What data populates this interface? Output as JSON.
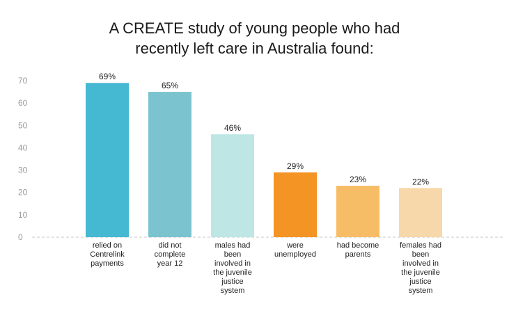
{
  "title_lines": [
    "A CREATE study of young people who had",
    "recently left care in Australia found:"
  ],
  "chart_data": {
    "type": "bar",
    "title": "A CREATE study of young people who had recently left care in Australia found:",
    "categories": [
      [
        "relied on",
        "Centrelink",
        "payments"
      ],
      [
        "did not",
        "complete",
        "year 12"
      ],
      [
        "males had",
        "been",
        "involved in",
        "the juvenile",
        "justice",
        "system"
      ],
      [
        "were",
        "unemployed"
      ],
      [
        "had become",
        "parents"
      ],
      [
        "females had",
        "been",
        "involved in",
        "the juvenile",
        "justice",
        "system"
      ]
    ],
    "values": [
      69,
      65,
      46,
      29,
      23,
      22
    ],
    "data_labels": [
      "69%",
      "65%",
      "46%",
      "29%",
      "23%",
      "22%"
    ],
    "colors": [
      "#45b8d2",
      "#7cc3d0",
      "#bde6e4",
      "#f49424",
      "#f7bd66",
      "#f7d8aa"
    ],
    "yticks": [
      "0",
      "10",
      "20",
      "30",
      "40",
      "50",
      "60",
      "70"
    ],
    "ylim": [
      0,
      70
    ],
    "xlabel": "",
    "ylabel": "",
    "grid": false,
    "legend": "none"
  }
}
